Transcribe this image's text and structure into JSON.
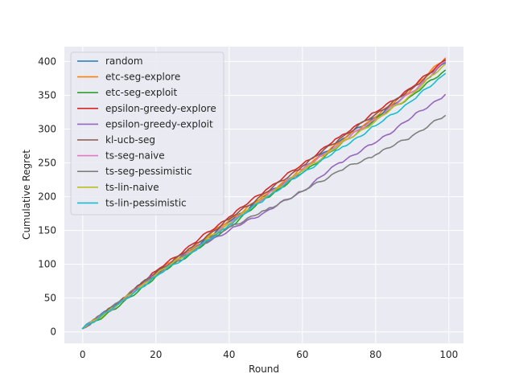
{
  "chart_data": {
    "type": "line",
    "title": "",
    "xlabel": "Round",
    "ylabel": "Cumulative Regret",
    "xlim": [
      -5,
      104
    ],
    "ylim": [
      -17,
      422
    ],
    "xticks": [
      0,
      20,
      40,
      60,
      80,
      100
    ],
    "yticks": [
      0,
      50,
      100,
      150,
      200,
      250,
      300,
      350,
      400
    ],
    "grid": true,
    "legend_position": "top-left",
    "x": [
      0,
      10,
      20,
      30,
      40,
      50,
      60,
      70,
      80,
      90,
      99
    ],
    "series": [
      {
        "name": "random",
        "color": "#1f77b4",
        "values": [
          5,
          45,
          87,
          122,
          163,
          202,
          240,
          282,
          318,
          355,
          398
        ]
      },
      {
        "name": "etc-seg-explore",
        "color": "#ff7f0e",
        "values": [
          5,
          44,
          88,
          125,
          165,
          203,
          241,
          280,
          318,
          360,
          405
        ]
      },
      {
        "name": "etc-seg-exploit",
        "color": "#2ca02c",
        "values": [
          5,
          38,
          82,
          118,
          155,
          198,
          235,
          275,
          315,
          350,
          387
        ]
      },
      {
        "name": "epsilon-greedy-explore",
        "color": "#d62728",
        "values": [
          5,
          44,
          90,
          130,
          170,
          210,
          248,
          288,
          325,
          362,
          403
        ]
      },
      {
        "name": "epsilon-greedy-exploit",
        "color": "#9467bd",
        "values": [
          5,
          44,
          87,
          122,
          150,
          178,
          208,
          250,
          280,
          318,
          351
        ]
      },
      {
        "name": "kl-ucb-seg",
        "color": "#8c564b",
        "values": [
          5,
          44,
          88,
          126,
          167,
          206,
          245,
          285,
          322,
          360,
          401
        ]
      },
      {
        "name": "ts-seg-naive",
        "color": "#e377c2",
        "values": [
          5,
          42,
          85,
          120,
          160,
          200,
          240,
          278,
          315,
          355,
          400
        ]
      },
      {
        "name": "ts-seg-pessimistic",
        "color": "#7f7f7f",
        "values": [
          5,
          45,
          85,
          120,
          155,
          180,
          208,
          238,
          262,
          290,
          320
        ]
      },
      {
        "name": "ts-lin-naive",
        "color": "#bcbd22",
        "values": [
          5,
          42,
          85,
          121,
          160,
          200,
          238,
          276,
          312,
          352,
          396
        ]
      },
      {
        "name": "ts-lin-pessimistic",
        "color": "#17becf",
        "values": [
          5,
          42,
          82,
          118,
          158,
          198,
          235,
          270,
          305,
          342,
          382
        ]
      }
    ]
  }
}
